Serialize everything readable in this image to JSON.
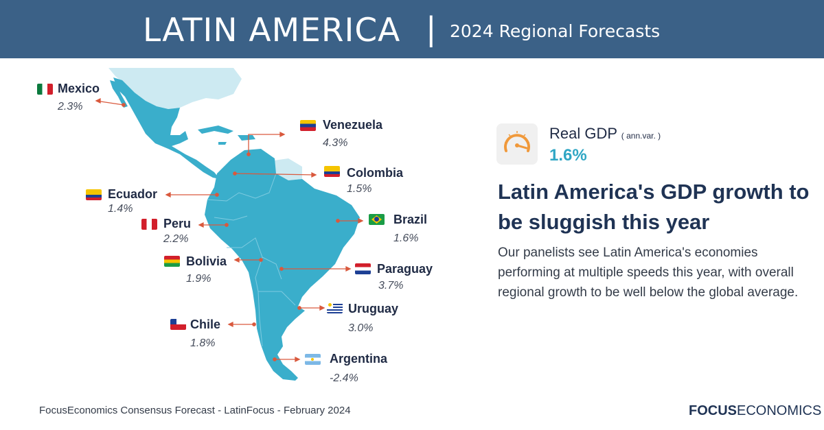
{
  "header": {
    "title": "LATIN AMERICA",
    "separator": "|",
    "subtitle": "2024 Regional Forecasts"
  },
  "countries": {
    "mexico": {
      "name": "Mexico",
      "value": "2.3%"
    },
    "venezuela": {
      "name": "Venezuela",
      "value": "4.3%"
    },
    "colombia": {
      "name": "Colombia",
      "value": "1.5%"
    },
    "ecuador": {
      "name": "Ecuador",
      "value": "1.4%"
    },
    "peru": {
      "name": "Peru",
      "value": "2.2%"
    },
    "brazil": {
      "name": "Brazil",
      "value": "1.6%"
    },
    "bolivia": {
      "name": "Bolivia",
      "value": "1.9%"
    },
    "paraguay": {
      "name": "Paraguay",
      "value": "3.7%"
    },
    "uruguay": {
      "name": "Uruguay",
      "value": "3.0%"
    },
    "chile": {
      "name": "Chile",
      "value": "1.8%"
    },
    "argentina": {
      "name": "Argentina",
      "value": "-2.4%"
    }
  },
  "gdp": {
    "label": "Real GDP",
    "unit": "( ann.var. )",
    "value": "1.6%",
    "icon": "speedometer-icon"
  },
  "headline": "Latin America's GDP growth to be sluggish this year",
  "body": "Our panelists see Latin America's economies performing at multiple speeds this year, with overall regional growth to be well below the global average.",
  "footer": {
    "source": "FocusEconomics Consensus Forecast - LatinFocus - February 2024",
    "brand_bold": "FOCUS",
    "brand_light": "ECONOMICS"
  },
  "colors": {
    "header_bg": "#3b6187",
    "map_fill": "#3aaecb",
    "map_light": "#cdeaf2",
    "pointer": "#d9593d",
    "accent": "#2fa6c4"
  }
}
